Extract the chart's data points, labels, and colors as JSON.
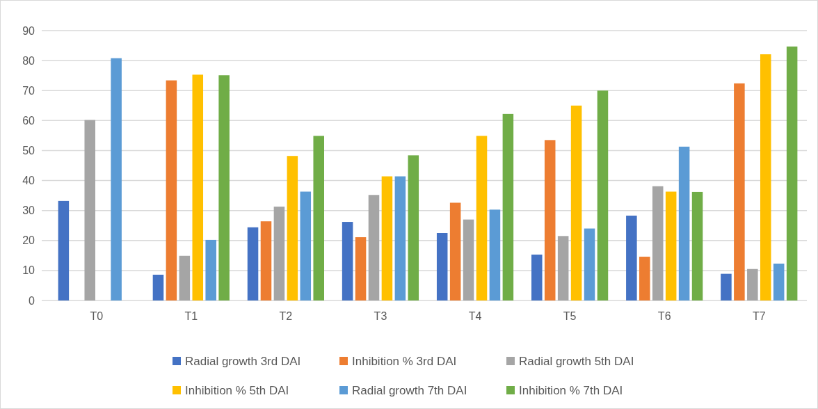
{
  "chart_data": {
    "type": "bar",
    "categories": [
      "T0",
      "T1",
      "T2",
      "T3",
      "T4",
      "T5",
      "T6",
      "T7"
    ],
    "series": [
      {
        "name": "Radial growth 3rd DAI",
        "color": "#4472c4",
        "values": [
          33.2,
          8.6,
          24.4,
          26.2,
          22.5,
          15.3,
          28.3,
          8.9
        ]
      },
      {
        "name": "Inhibition % 3rd DAI",
        "color": "#ed7d31",
        "values": [
          null,
          73.4,
          26.4,
          21.1,
          32.6,
          53.5,
          14.6,
          72.4
        ]
      },
      {
        "name": "Radial growth 5th DAI",
        "color": "#a5a5a5",
        "values": [
          60.2,
          14.9,
          31.3,
          35.2,
          27.0,
          21.5,
          38.1,
          10.5
        ]
      },
      {
        "name": "Inhibition % 5th DAI",
        "color": "#ffc000",
        "values": [
          null,
          75.3,
          48.2,
          41.4,
          54.9,
          65.0,
          36.3,
          82.1
        ]
      },
      {
        "name": "Radial growth 7th DAI",
        "color": "#5b9bd5",
        "values": [
          80.8,
          20.2,
          36.3,
          41.4,
          30.3,
          24.0,
          51.3,
          12.3
        ]
      },
      {
        "name": "Inhibition % 7th DAI",
        "color": "#70ad47",
        "values": [
          null,
          75.1,
          54.9,
          48.4,
          62.2,
          70.0,
          36.2,
          84.7
        ]
      }
    ],
    "ylim": [
      0,
      90
    ],
    "yticks": [
      0,
      10,
      20,
      30,
      40,
      50,
      60,
      70,
      80,
      90
    ],
    "grid": "y",
    "legend": "bottom"
  }
}
